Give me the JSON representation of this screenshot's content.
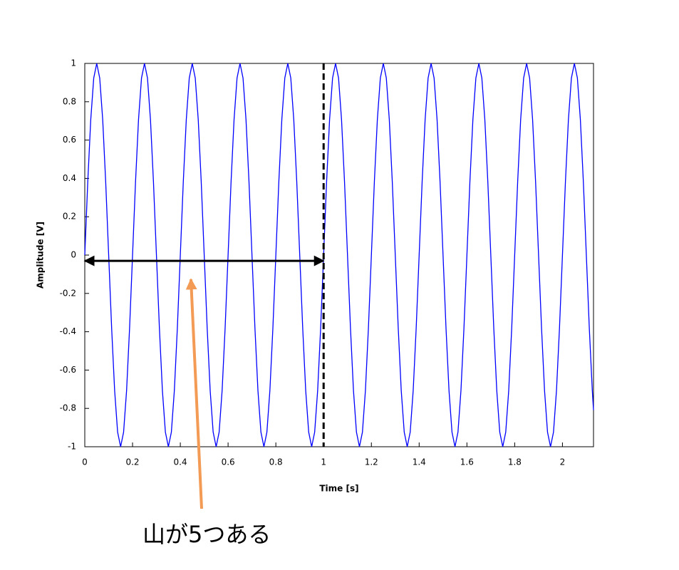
{
  "chart_data": {
    "type": "line",
    "xlabel": "Time [s]",
    "ylabel": "Amplitude [V]",
    "annotation": "山が5つある",
    "xlim": [
      0,
      2.13
    ],
    "ylim": [
      -1,
      1
    ],
    "xticks": [
      0,
      0.2,
      0.4,
      0.6,
      0.8,
      1,
      1.2,
      1.4,
      1.6,
      1.8,
      2
    ],
    "yticks": [
      -1,
      -0.8,
      -0.6,
      -0.4,
      -0.2,
      0,
      0.2,
      0.4,
      0.6,
      0.8,
      1
    ],
    "vline_x": 1,
    "span": {
      "x0": 0,
      "x1": 1,
      "y": -0.03
    },
    "x": [
      0,
      0.0125,
      0.025,
      0.0375,
      0.05,
      0.0625,
      0.075,
      0.0875,
      0.1,
      0.1125,
      0.125,
      0.1375,
      0.15,
      0.1625,
      0.175,
      0.1875,
      0.2,
      0.2125,
      0.225,
      0.2375,
      0.25,
      0.2625,
      0.275,
      0.2875,
      0.3,
      0.3125,
      0.325,
      0.3375,
      0.35,
      0.3625,
      0.375,
      0.3875,
      0.4,
      0.4125,
      0.425,
      0.4375,
      0.45,
      0.4625,
      0.475,
      0.4875,
      0.5,
      0.5125,
      0.525,
      0.5375,
      0.55,
      0.5625,
      0.575,
      0.5875,
      0.6,
      0.6125,
      0.625,
      0.6375,
      0.65,
      0.6625,
      0.675,
      0.6875,
      0.7,
      0.7125,
      0.725,
      0.7375,
      0.75,
      0.7625,
      0.775,
      0.7875,
      0.8,
      0.8125,
      0.825,
      0.8375,
      0.85,
      0.8625,
      0.875,
      0.8875,
      0.9,
      0.9125,
      0.925,
      0.9375,
      0.95,
      0.9625,
      0.975,
      0.9875,
      1,
      1.0125,
      1.025,
      1.0375,
      1.05,
      1.0625,
      1.075,
      1.0875,
      1.1,
      1.1125,
      1.125,
      1.1375,
      1.15,
      1.1625,
      1.175,
      1.1875,
      1.2,
      1.2125,
      1.225,
      1.2375,
      1.25,
      1.2625,
      1.275,
      1.2875,
      1.3,
      1.3125,
      1.325,
      1.3375,
      1.35,
      1.3625,
      1.375,
      1.3875,
      1.4,
      1.4125,
      1.425,
      1.4375,
      1.45,
      1.4625,
      1.475,
      1.4875,
      1.5,
      1.5125,
      1.525,
      1.5375,
      1.55,
      1.5625,
      1.575,
      1.5875,
      1.6,
      1.6125,
      1.625,
      1.6375,
      1.65,
      1.6625,
      1.675,
      1.6875,
      1.7,
      1.7125,
      1.725,
      1.7375,
      1.75,
      1.7625,
      1.775,
      1.7875,
      1.8,
      1.8125,
      1.825,
      1.8375,
      1.85,
      1.8625,
      1.875,
      1.8875,
      1.9,
      1.9125,
      1.925,
      1.9375,
      1.95,
      1.9625,
      1.975,
      1.9875,
      2,
      2.0125,
      2.025,
      2.0375,
      2.05,
      2.0625,
      2.075,
      2.0875,
      2.1,
      2.1125,
      2.125,
      2.13
    ],
    "series": [
      {
        "color": "#0000ff",
        "values": [
          0,
          0.383,
          0.707,
          0.924,
          1,
          0.924,
          0.707,
          0.383,
          0,
          -0.383,
          -0.707,
          -0.924,
          -1,
          -0.924,
          -0.707,
          -0.383,
          0,
          0.383,
          0.707,
          0.924,
          1,
          0.924,
          0.707,
          0.383,
          0,
          -0.383,
          -0.707,
          -0.924,
          -1,
          -0.924,
          -0.707,
          -0.383,
          0,
          0.383,
          0.707,
          0.924,
          1,
          0.924,
          0.707,
          0.383,
          0,
          -0.383,
          -0.707,
          -0.924,
          -1,
          -0.924,
          -0.707,
          -0.383,
          0,
          0.383,
          0.707,
          0.924,
          1,
          0.924,
          0.707,
          0.383,
          0,
          -0.383,
          -0.707,
          -0.924,
          -1,
          -0.924,
          -0.707,
          -0.383,
          0,
          0.383,
          0.707,
          0.924,
          1,
          0.924,
          0.707,
          0.383,
          0,
          -0.383,
          -0.707,
          -0.924,
          -1,
          -0.924,
          -0.707,
          -0.383,
          0,
          0.383,
          0.707,
          0.924,
          1,
          0.924,
          0.707,
          0.383,
          0,
          -0.383,
          -0.707,
          -0.924,
          -1,
          -0.924,
          -0.707,
          -0.383,
          0,
          0.383,
          0.707,
          0.924,
          1,
          0.924,
          0.707,
          0.383,
          0,
          -0.383,
          -0.707,
          -0.924,
          -1,
          -0.924,
          -0.707,
          -0.383,
          0,
          0.383,
          0.707,
          0.924,
          1,
          0.924,
          0.707,
          0.383,
          0,
          -0.383,
          -0.707,
          -0.924,
          -1,
          -0.924,
          -0.707,
          -0.383,
          0,
          0.383,
          0.707,
          0.924,
          1,
          0.924,
          0.707,
          0.383,
          0,
          -0.383,
          -0.707,
          -0.924,
          -1,
          -0.924,
          -0.707,
          -0.383,
          0,
          0.383,
          0.707,
          0.924,
          1,
          0.924,
          0.707,
          0.383,
          0,
          -0.383,
          -0.707,
          -0.924,
          -1,
          -0.924,
          -0.707,
          -0.383,
          0,
          0.383,
          0.707,
          0.924,
          1,
          0.924,
          0.707,
          0.383,
          0,
          -0.383,
          -0.707,
          -0.809
        ]
      }
    ]
  }
}
